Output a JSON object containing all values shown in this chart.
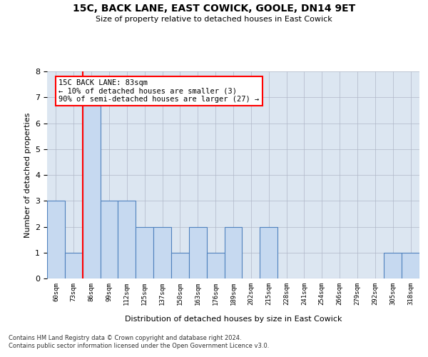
{
  "title_line1": "15C, BACK LANE, EAST COWICK, GOOLE, DN14 9ET",
  "title_line2": "Size of property relative to detached houses in East Cowick",
  "xlabel": "Distribution of detached houses by size in East Cowick",
  "ylabel": "Number of detached properties",
  "footnote1": "Contains HM Land Registry data © Crown copyright and database right 2024.",
  "footnote2": "Contains public sector information licensed under the Open Government Licence v3.0.",
  "annotation_line1": "15C BACK LANE: 83sqm",
  "annotation_line2": "← 10% of detached houses are smaller (3)",
  "annotation_line3": "90% of semi-detached houses are larger (27) →",
  "bin_labels": [
    "60sqm",
    "73sqm",
    "86sqm",
    "99sqm",
    "112sqm",
    "125sqm",
    "137sqm",
    "150sqm",
    "163sqm",
    "176sqm",
    "189sqm",
    "202sqm",
    "215sqm",
    "228sqm",
    "241sqm",
    "254sqm",
    "266sqm",
    "279sqm",
    "292sqm",
    "305sqm",
    "318sqm"
  ],
  "bar_values": [
    3,
    1,
    7,
    3,
    3,
    2,
    2,
    1,
    2,
    1,
    2,
    0,
    2,
    0,
    0,
    0,
    0,
    0,
    0,
    1,
    1
  ],
  "bar_color": "#c6d9f0",
  "bar_edge_color": "#4f81bd",
  "red_line_x": 2,
  "ylim": [
    0,
    8
  ],
  "yticks": [
    0,
    1,
    2,
    3,
    4,
    5,
    6,
    7,
    8
  ],
  "bg_color": "#ffffff",
  "grid_color": "#b0b8c8",
  "red_line_color": "#ff0000",
  "ax_bg_color": "#dce6f1"
}
